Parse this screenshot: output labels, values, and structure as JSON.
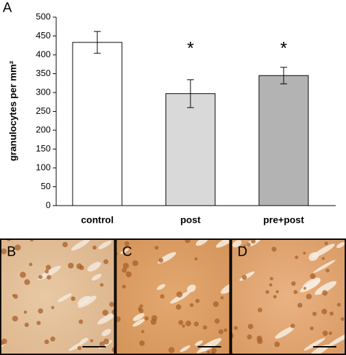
{
  "chart_data": {
    "type": "bar",
    "panel_label": "A",
    "ylabel": "granulocytes per mm²",
    "categories": [
      "control",
      "post",
      "pre+post"
    ],
    "values": [
      433,
      297,
      345
    ],
    "errors": [
      29,
      37,
      22
    ],
    "colors": [
      "#ffffff",
      "#d9d9d9",
      "#b3b3b3"
    ],
    "significance": [
      null,
      "*",
      "*"
    ],
    "ylim": [
      0,
      500
    ],
    "yticks": [
      0,
      50,
      100,
      150,
      200,
      250,
      300,
      350,
      400,
      450,
      500
    ]
  },
  "micrographs": {
    "labels": [
      "B",
      "C",
      "D"
    ]
  }
}
